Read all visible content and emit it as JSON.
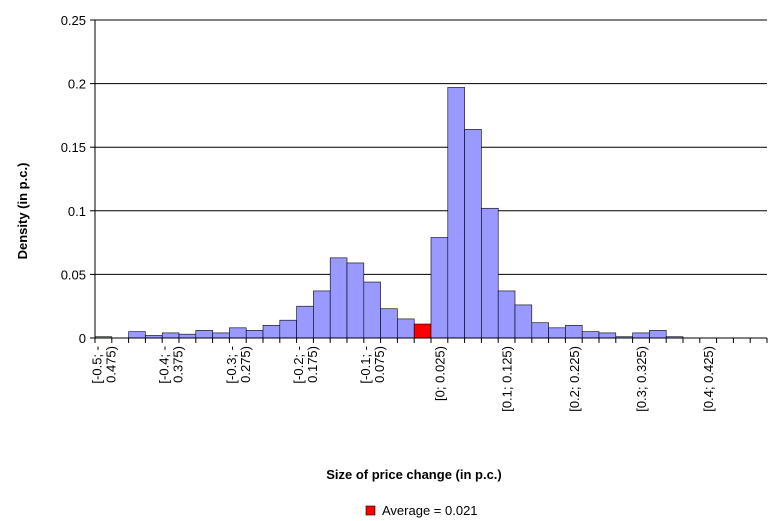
{
  "chart_data": {
    "type": "bar",
    "xlabel": "Size of price change (in p.c.)",
    "ylabel": "Density (in p.c.)",
    "ylim": [
      0,
      0.25
    ],
    "yticks": [
      "0",
      "0.05",
      "0.1",
      "0.15",
      "0.2",
      "0.25"
    ],
    "grid": true,
    "legend": "bottom",
    "colors": {
      "bar": "#9999ff",
      "highlight": "#ff0000",
      "edge": "#000000",
      "grid": "#000000"
    },
    "categories": [
      "-0.5",
      "-0.475",
      "-0.45",
      "-0.425",
      "-0.4",
      "-0.375",
      "-0.35",
      "-0.325",
      "-0.3",
      "-0.275",
      "-0.25",
      "-0.225",
      "-0.2",
      "-0.175",
      "-0.15",
      "-0.125",
      "-0.1",
      "-0.075",
      "-0.05",
      "-0.025",
      "0",
      "0.025",
      "0.05",
      "0.075",
      "0.1",
      "0.125",
      "0.15",
      "0.175",
      "0.2",
      "0.225",
      "0.25",
      "0.275",
      "0.3",
      "0.325",
      "0.35",
      "0.375",
      "0.4",
      "0.425",
      "0.45",
      "0.475"
    ],
    "tick_labels": [
      {
        "index": 0,
        "line1": "[-0.5; -",
        "line2": "0.475)"
      },
      {
        "index": 4,
        "line1": "[-0.4; -",
        "line2": "0.375)"
      },
      {
        "index": 8,
        "line1": "[-0.3; -",
        "line2": "0.275)"
      },
      {
        "index": 12,
        "line1": "[-0.2; -",
        "line2": "0.175)"
      },
      {
        "index": 16,
        "line1": "[-0.1; -",
        "line2": "0.075)"
      },
      {
        "index": 20,
        "line1": "[0; 0.025)",
        "line2": ""
      },
      {
        "index": 24,
        "line1": "[0.1; 0.125)",
        "line2": ""
      },
      {
        "index": 28,
        "line1": "[0.2; 0.225)",
        "line2": ""
      },
      {
        "index": 32,
        "line1": "[0.3; 0.325)",
        "line2": ""
      },
      {
        "index": 36,
        "line1": "[0.4; 0.425)",
        "line2": ""
      }
    ],
    "series": [
      {
        "name": "Density",
        "values": [
          0.001,
          0,
          0.005,
          0.002,
          0.004,
          0.003,
          0.006,
          0.004,
          0.008,
          0.006,
          0.01,
          0.014,
          0.025,
          0.037,
          0.063,
          0.059,
          0.044,
          0.023,
          0.015,
          0.011,
          0.079,
          0.197,
          0.164,
          0.102,
          0.037,
          0.026,
          0.012,
          0.008,
          0.01,
          0.005,
          0.004,
          0.001,
          0.004,
          0.006,
          0.001,
          0,
          0,
          0,
          0,
          0
        ]
      }
    ],
    "highlight_index": 19,
    "legend_entries": [
      {
        "label": "Average = 0.021",
        "color": "#ff0000"
      }
    ]
  }
}
